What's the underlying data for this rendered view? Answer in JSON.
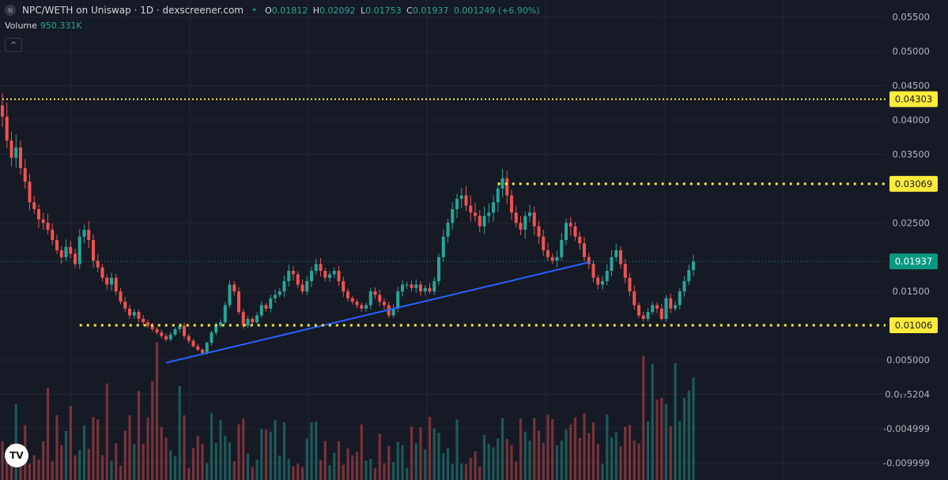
{
  "legend": {
    "logo_letter": "N",
    "title": "NPC/WETH on Uniswap · 1D · dexscreener.com",
    "dot": "•",
    "o_label": "O",
    "o_value": "0.01812",
    "h_label": "H",
    "h_value": "0.02092",
    "l_label": "L",
    "l_value": "0.01753",
    "c_label": "C",
    "c_value": "0.01937",
    "change": "0.001249 (+6.90%)"
  },
  "volume": {
    "label": "Volume",
    "value": "950.331K"
  },
  "controls": {
    "collapse_glyph": "^"
  },
  "watermark": {
    "text": "TV"
  },
  "colors": {
    "background": "#161a25",
    "grid": "#232632",
    "up": "#26a69a",
    "down": "#ef5350",
    "level_line": "#ffeb3b",
    "trend_line": "#2962ff",
    "axis_text": "#b2b5be",
    "current_price_bg": "#089981"
  },
  "chart_data": {
    "type": "candlestick",
    "title": "NPC/WETH on Uniswap · 1D · dexscreener.com",
    "price_axis": {
      "ylim": [
        -0.0125,
        0.0575
      ],
      "tick_labels": [
        "0.05500",
        "0.05000",
        "0.04500",
        "0.04000",
        "0.03500",
        "0.02500",
        "0.01500",
        "0.005000",
        "0.0₁₇5204",
        "-0.004999",
        "-0.009999"
      ],
      "tick_values": [
        0.055,
        0.05,
        0.045,
        0.04,
        0.035,
        0.025,
        0.015,
        0.005,
        5.204e-08,
        -0.004999,
        -0.009999
      ]
    },
    "levels": [
      {
        "value": 0.04303,
        "label": "0.04303",
        "start_index": 0
      },
      {
        "value": 0.03069,
        "label": "0.03069",
        "start_index": 109
      },
      {
        "value": 0.01006,
        "label": "0.01006",
        "start_index": 17
      }
    ],
    "current_price": {
      "value": 0.01937,
      "label": "0.01937"
    },
    "trendline": {
      "start": {
        "index": 36,
        "value": 0.0046
      },
      "end": {
        "index": 129,
        "value": 0.01925
      }
    },
    "grid": true,
    "volume_max": 950331,
    "close": [
      0.0405,
      0.037,
      0.0345,
      0.036,
      0.033,
      0.031,
      0.028,
      0.027,
      0.0255,
      0.025,
      0.024,
      0.0225,
      0.021,
      0.02,
      0.0215,
      0.0205,
      0.019,
      0.023,
      0.024,
      0.0225,
      0.0195,
      0.0185,
      0.017,
      0.016,
      0.017,
      0.015,
      0.0135,
      0.0125,
      0.0115,
      0.012,
      0.011,
      0.0105,
      0.01,
      0.0095,
      0.009,
      0.0085,
      0.008,
      0.0087,
      0.0095,
      0.01,
      0.0085,
      0.0078,
      0.007,
      0.0065,
      0.006,
      0.0075,
      0.009,
      0.01,
      0.0105,
      0.013,
      0.016,
      0.015,
      0.012,
      0.01,
      0.011,
      0.0105,
      0.0115,
      0.013,
      0.0125,
      0.014,
      0.0145,
      0.015,
      0.0165,
      0.018,
      0.0175,
      0.016,
      0.015,
      0.0165,
      0.018,
      0.019,
      0.018,
      0.017,
      0.0175,
      0.018,
      0.0165,
      0.015,
      0.014,
      0.0135,
      0.013,
      0.0125,
      0.013,
      0.015,
      0.0145,
      0.0135,
      0.013,
      0.0115,
      0.0125,
      0.015,
      0.016,
      0.016,
      0.0155,
      0.016,
      0.015,
      0.0155,
      0.015,
      0.0165,
      0.02,
      0.023,
      0.025,
      0.027,
      0.0285,
      0.029,
      0.0275,
      0.0265,
      0.026,
      0.0245,
      0.026,
      0.0265,
      0.028,
      0.03,
      0.0315,
      0.029,
      0.0265,
      0.025,
      0.024,
      0.026,
      0.0265,
      0.0245,
      0.023,
      0.021,
      0.02,
      0.0195,
      0.02,
      0.0225,
      0.025,
      0.0245,
      0.023,
      0.022,
      0.02,
      0.019,
      0.017,
      0.016,
      0.0165,
      0.018,
      0.02,
      0.021,
      0.019,
      0.017,
      0.015,
      0.013,
      0.0115,
      0.011,
      0.012,
      0.013,
      0.0125,
      0.011,
      0.014,
      0.0125,
      0.013,
      0.015,
      0.0165,
      0.01812,
      0.01937
    ],
    "series": [
      {
        "name": "Volume",
        "values": []
      }
    ]
  }
}
